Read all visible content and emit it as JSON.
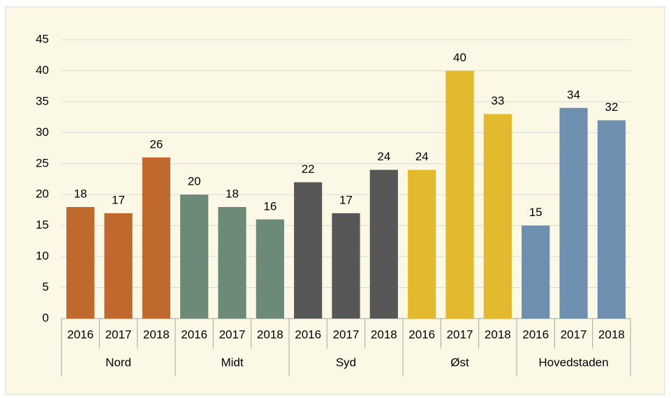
{
  "chart_data": {
    "type": "bar",
    "categories": [
      "2016",
      "2017",
      "2018"
    ],
    "series": [
      {
        "name": "Nord",
        "color": "#c0692f",
        "values": [
          18,
          17,
          26
        ]
      },
      {
        "name": "Midt",
        "color": "#6d8a78",
        "values": [
          20,
          18,
          16
        ]
      },
      {
        "name": "Syd",
        "color": "#575757",
        "values": [
          22,
          17,
          24
        ]
      },
      {
        "name": "Øst",
        "color": "#e3b92e",
        "values": [
          24,
          40,
          33
        ]
      },
      {
        "name": "Hovedstaden",
        "color": "#6e8fae",
        "values": [
          15,
          34,
          32
        ]
      }
    ],
    "ylim": [
      0,
      45
    ],
    "yticks": [
      0,
      5,
      10,
      15,
      20,
      25,
      30,
      35,
      40,
      45
    ],
    "grid": true
  }
}
